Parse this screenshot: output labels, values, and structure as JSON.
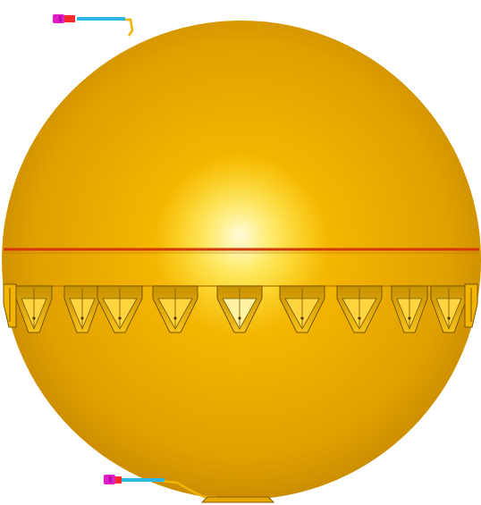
{
  "scene": {
    "background_color": "#ffffff",
    "sphere": {
      "base_color": "#e6a300",
      "highlight_color": "#fff6b0",
      "shadow_color": "#8a5a00",
      "equator_weld_color": "#d2380c"
    },
    "lugs": {
      "count": 10,
      "color": "#f3b400",
      "outline_color": "#7a5600"
    },
    "pipes": [
      {
        "name": "upper-nozzle-pipe",
        "pipe_color": "#2ab6e6",
        "flange_color": "#e01cc8",
        "fitting_color": "#ff2a2a",
        "support_color": "#f0b400"
      },
      {
        "name": "lower-nozzle-pipe",
        "pipe_color": "#2ab6e6",
        "flange_color": "#e01cc8",
        "fitting_color": "#ff2a2a",
        "support_color": "#f0b400"
      }
    ]
  }
}
